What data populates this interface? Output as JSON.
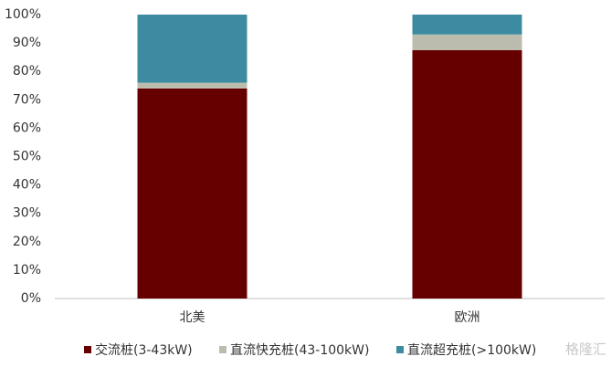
{
  "chart_data": {
    "type": "stacked_bar",
    "categories": [
      "北美",
      "欧洲"
    ],
    "series": [
      {
        "name": "交流桩(3-43kW)",
        "color": "#660000",
        "values": [
          74,
          87.5
        ]
      },
      {
        "name": "直流快充桩(43-100kW)",
        "color": "#bcbcae",
        "values": [
          2,
          5.5
        ]
      },
      {
        "name": "直流超充桩(>100kW)",
        "color": "#3d8ba0",
        "values": [
          24,
          7
        ]
      }
    ],
    "ylim": [
      0,
      100
    ],
    "yticks": [
      {
        "value": 0,
        "label": "0%"
      },
      {
        "value": 10,
        "label": "10%"
      },
      {
        "value": 20,
        "label": "20%"
      },
      {
        "value": 30,
        "label": "30%"
      },
      {
        "value": 40,
        "label": "40%"
      },
      {
        "value": 50,
        "label": "50%"
      },
      {
        "value": 60,
        "label": "60%"
      },
      {
        "value": 70,
        "label": "70%"
      },
      {
        "value": 80,
        "label": "80%"
      },
      {
        "value": 90,
        "label": "90%"
      },
      {
        "value": 100,
        "label": "100%"
      }
    ],
    "grid": false,
    "legend": "bottom",
    "watermark": "格隆汇"
  }
}
